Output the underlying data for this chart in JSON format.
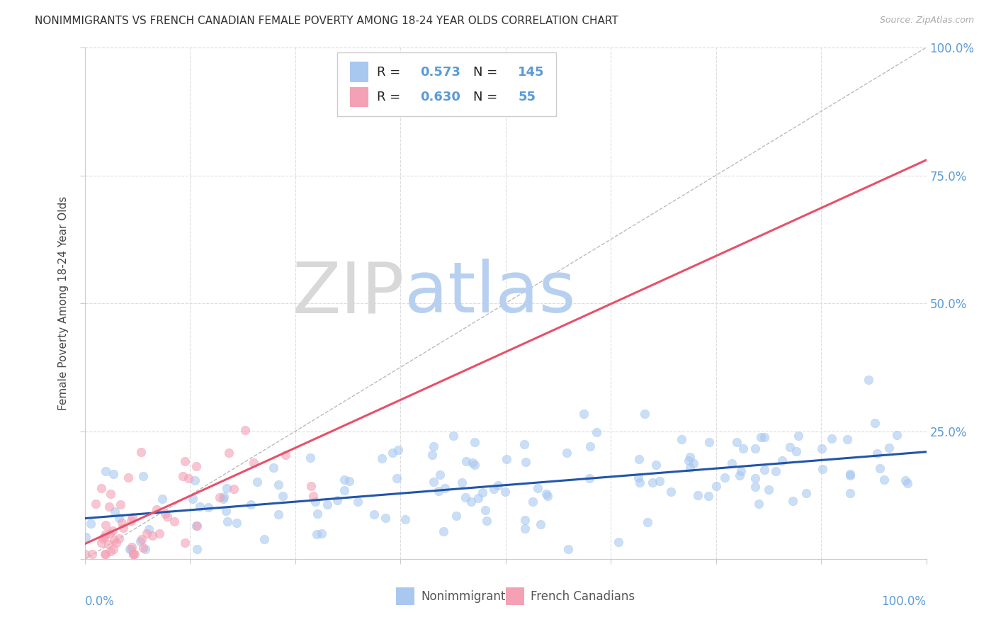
{
  "title": "NONIMMIGRANTS VS FRENCH CANADIAN FEMALE POVERTY AMONG 18-24 YEAR OLDS CORRELATION CHART",
  "source": "Source: ZipAtlas.com",
  "ylabel": "Female Poverty Among 18-24 Year Olds",
  "xlim": [
    0,
    1
  ],
  "ylim": [
    0,
    1
  ],
  "blue_color": "#a8c8f0",
  "pink_color": "#f4a0b5",
  "blue_line_color": "#2255aa",
  "pink_line_color": "#e8506a",
  "blue_R": 0.573,
  "blue_N": 145,
  "pink_R": 0.63,
  "pink_N": 55,
  "blue_slope": 0.13,
  "blue_intercept": 0.08,
  "pink_slope": 0.75,
  "pink_intercept": 0.03,
  "watermark_zip": "ZIP",
  "watermark_atlas": "atlas",
  "watermark_zip_color": "#d8d8d8",
  "watermark_atlas_color": "#b8d0f0",
  "background_color": "#ffffff",
  "grid_color": "#dddddd",
  "right_tick_color": "#5b9bd5",
  "title_fontsize": 11,
  "axis_label_fontsize": 11
}
